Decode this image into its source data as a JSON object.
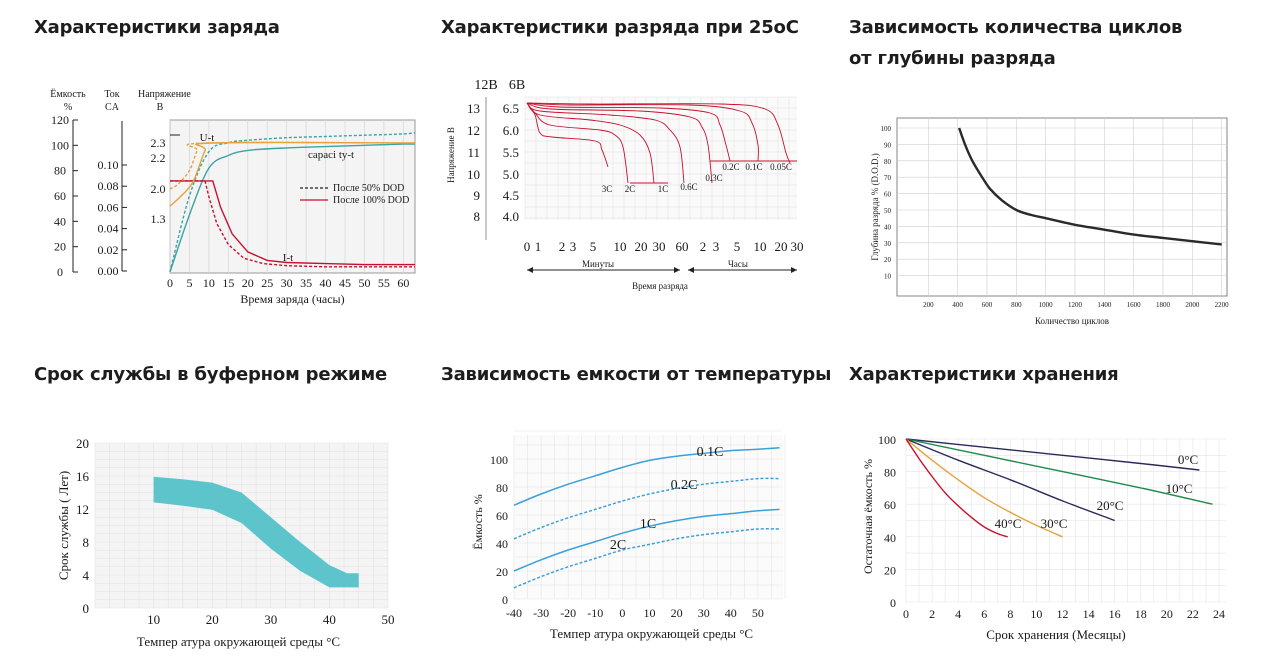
{
  "colors": {
    "grid": "#d6d6d6",
    "plotbg": "#f4f4f4",
    "red": "#c8102e",
    "teal": "#3aa3a3",
    "orange": "#e8a23a",
    "blue": "#3aa0d8",
    "dark": "#2a2a2a",
    "band": "#5ec4cc",
    "green": "#1e8a4c",
    "navy": "#2a2a5a"
  },
  "panels": {
    "charge": {
      "title": "Характеристики заряда"
    },
    "discharge": {
      "title": "Характеристики разряда при 25оС"
    },
    "cycles": {
      "title": "Зависимость количества циклов от глубины разряда"
    },
    "float": {
      "title": "Срок службы в буферном режиме"
    },
    "temp": {
      "title": "Зависимость емкости от температуры"
    },
    "storage": {
      "title": "Характеристики хранения"
    }
  },
  "chart_data": [
    {
      "id": "charge",
      "type": "line",
      "xlabel": "Время заряда (часы)",
      "axis_headers": {
        "capacity": "Ёмкость\n%",
        "current": "Ток\nCA",
        "voltage": "Напряжение\nВ"
      },
      "x_ticks": [
        "0",
        "5",
        "10",
        "15",
        "20",
        "25",
        "30",
        "35",
        "40",
        "45",
        "50",
        "55",
        "60"
      ],
      "capacity_ticks": [
        "120",
        "100",
        "80",
        "60",
        "40",
        "20",
        "0"
      ],
      "current_ticks": [
        "0.10",
        "0.08",
        "0.06",
        "0.04",
        "0.02",
        "0.00"
      ],
      "voltage_ticks": [
        "2.3",
        "2.2",
        "2.0",
        "1.3"
      ],
      "legend": [
        {
          "name": "После 50% DOD",
          "style": "dashed"
        },
        {
          "name": "После 100% DOD",
          "style": "solid"
        }
      ],
      "annotations": [
        "U-t",
        "capaci ty-t",
        "I-t"
      ],
      "series": [
        {
          "name": "capacity (100% DOD)",
          "x": [
            0,
            5,
            10,
            15,
            20,
            30,
            40,
            50,
            60,
            63
          ],
          "y": [
            0,
            45,
            82,
            92,
            96,
            98,
            99,
            100,
            101,
            101
          ]
        },
        {
          "name": "capacity (50% DOD)",
          "x": [
            0,
            5,
            10,
            15,
            20,
            30,
            40,
            50,
            60,
            63
          ],
          "y": [
            0,
            60,
            95,
            102,
            104,
            106,
            107,
            108,
            109,
            110
          ]
        },
        {
          "name": "current (100% DOD)",
          "x": [
            0,
            10,
            11,
            13,
            16,
            20,
            25,
            30,
            40,
            50,
            60,
            63
          ],
          "y": [
            0.085,
            0.085,
            0.085,
            0.06,
            0.035,
            0.018,
            0.01,
            0.008,
            0.007,
            0.006,
            0.006,
            0.006
          ]
        },
        {
          "name": "current (50% DOD)",
          "x": [
            0,
            9,
            10,
            12,
            15,
            19,
            24,
            30,
            40,
            50,
            60,
            63
          ],
          "y": [
            0.085,
            0.085,
            0.07,
            0.045,
            0.025,
            0.012,
            0.007,
            0.005,
            0.004,
            0.004,
            0.004,
            0.004
          ]
        },
        {
          "name": "voltage (100% DOD)",
          "x": [
            0,
            3,
            6,
            9,
            11,
            63
          ],
          "y": [
            1.6,
            1.85,
            2.05,
            2.25,
            2.3,
            2.3
          ]
        },
        {
          "name": "voltage (50% DOD)",
          "x": [
            0,
            2,
            5,
            7,
            9,
            63
          ],
          "y": [
            2.0,
            2.03,
            2.12,
            2.25,
            2.3,
            2.3
          ]
        }
      ]
    },
    {
      "id": "discharge",
      "type": "line",
      "xlabel": "Время разряда",
      "x_sublabels": [
        "Минуты",
        "Часы"
      ],
      "ylabel": "Напряжение В",
      "y_headers": [
        "12В",
        "6В"
      ],
      "y_ticks_12v": [
        "13",
        "12",
        "11",
        "10",
        "9",
        "8"
      ],
      "y_ticks_6v": [
        "6.5",
        "6.0",
        "5.5",
        "5.0",
        "4.5",
        "4.0"
      ],
      "x_ticks": [
        "0",
        "1",
        "2",
        "3",
        "5",
        "10",
        "20",
        "30",
        "60",
        "2",
        "3",
        "5",
        "10",
        "20",
        "30"
      ],
      "rate_labels": [
        "3C",
        "2C",
        "1C",
        "0.6C",
        "0.3C",
        "0.2C",
        "0.1C",
        "0.05C"
      ]
    },
    {
      "id": "cycles",
      "type": "line",
      "xlabel": "Количество циклов",
      "ylabel": "Глубина разряда % (D.O.D.)",
      "x_ticks": [
        "200",
        "400",
        "600",
        "800",
        "1000",
        "1200",
        "1400",
        "1600",
        "1800",
        "2000",
        "2200"
      ],
      "y_ticks": [
        "100",
        "90",
        "80",
        "70",
        "60",
        "50",
        "40",
        "30",
        "20",
        "10"
      ],
      "series": [
        {
          "x": [
            410,
            450,
            500,
            560,
            620,
            700,
            800,
            900,
            1000,
            1200,
            1400,
            1600,
            1800,
            2000,
            2200
          ],
          "y": [
            100,
            90,
            80,
            71,
            63,
            56,
            50,
            47,
            45,
            41,
            38,
            35,
            33,
            31,
            29
          ]
        }
      ]
    },
    {
      "id": "float",
      "type": "area",
      "xlabel": "Темпер атура окружающей среды °C",
      "ylabel": "Срок службы ( Лет)",
      "x_ticks": [
        "10",
        "20",
        "30",
        "40",
        "50"
      ],
      "y_ticks": [
        "20",
        "16",
        "12",
        "8",
        "4",
        "0"
      ],
      "band": {
        "x": [
          10,
          15,
          20,
          25,
          30,
          35,
          40,
          43,
          45
        ],
        "upper": [
          15.9,
          15.6,
          15.2,
          14,
          11,
          8,
          5.2,
          4.2,
          4.2
        ],
        "lower": [
          12.8,
          12.4,
          11.9,
          10.3,
          7.2,
          4.5,
          2.5,
          2.5,
          2.5
        ]
      }
    },
    {
      "id": "temp",
      "type": "line",
      "xlabel": "Темпер атура окружающей среды °C",
      "ylabel": "Ёмкость %",
      "x_ticks": [
        "-40",
        "-30",
        "-20",
        "-10",
        "0",
        "10",
        "20",
        "30",
        "40",
        "50"
      ],
      "y_ticks": [
        "100",
        "80",
        "60",
        "40",
        "20",
        "0"
      ],
      "series": [
        {
          "name": "0.1C",
          "style": "solid",
          "x": [
            -40,
            -30,
            -20,
            -10,
            0,
            10,
            20,
            30,
            40,
            50,
            58
          ],
          "y": [
            67,
            75,
            82,
            88,
            94,
            99,
            102,
            104,
            106,
            107,
            108
          ]
        },
        {
          "name": "0.2C",
          "style": "dashed",
          "x": [
            -40,
            -30,
            -20,
            -10,
            0,
            10,
            20,
            30,
            40,
            50,
            58
          ],
          "y": [
            43,
            51,
            58,
            64,
            70,
            75,
            79,
            82,
            84,
            86,
            86
          ]
        },
        {
          "name": "1C",
          "style": "solid",
          "x": [
            -40,
            -30,
            -20,
            -10,
            0,
            10,
            20,
            30,
            40,
            50,
            58
          ],
          "y": [
            20,
            28,
            35,
            41,
            47,
            52,
            56,
            59,
            61,
            63,
            64
          ]
        },
        {
          "name": "2C",
          "style": "dashed",
          "x": [
            -40,
            -30,
            -20,
            -10,
            0,
            10,
            20,
            30,
            40,
            50,
            58
          ],
          "y": [
            8,
            16,
            23,
            29,
            35,
            39,
            43,
            46,
            48,
            50,
            50
          ]
        }
      ]
    },
    {
      "id": "storage",
      "type": "line",
      "xlabel": "Срок хранения (Месяцы)",
      "ylabel": "Остаточная ёмкость %",
      "x_ticks": [
        "0",
        "2",
        "4",
        "6",
        "8",
        "10",
        "12",
        "14",
        "16",
        "18",
        "20",
        "22",
        "24"
      ],
      "y_ticks": [
        "100",
        "80",
        "60",
        "40",
        "20",
        "0"
      ],
      "series": [
        {
          "name": "0°C",
          "x": [
            0,
            6,
            12,
            18,
            22.5
          ],
          "y": [
            100,
            95,
            90,
            85,
            81
          ]
        },
        {
          "name": "10°C",
          "x": [
            0,
            6,
            12,
            18,
            23.5
          ],
          "y": [
            100,
            90,
            80,
            70,
            60
          ]
        },
        {
          "name": "20°C",
          "x": [
            0,
            4,
            8,
            12,
            16
          ],
          "y": [
            100,
            87,
            75,
            62,
            50
          ]
        },
        {
          "name": "30°C",
          "x": [
            0,
            2,
            4,
            6,
            8,
            10,
            12
          ],
          "y": [
            100,
            87,
            75,
            64,
            55,
            47,
            40
          ]
        },
        {
          "name": "40°C",
          "x": [
            0,
            1,
            2,
            3,
            4,
            5,
            6,
            7,
            7.8
          ],
          "y": [
            100,
            88,
            77,
            67,
            59,
            52,
            46,
            42,
            40
          ]
        }
      ]
    }
  ]
}
